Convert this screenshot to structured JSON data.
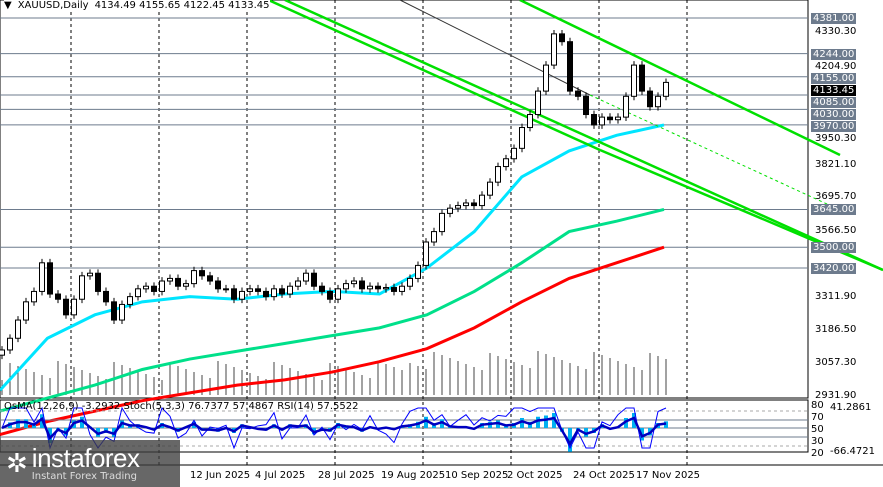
{
  "header": {
    "symbol": "XAUUSD,Daily",
    "ohlc": "4134.49 4155.65 4122.45 4133.45"
  },
  "chart_data": {
    "type": "candlestick",
    "price_axis": {
      "min": 2931.9,
      "max": 4381.0,
      "ticks": [
        "4330.30",
        "4204.90",
        "3950.30",
        "3821.10",
        "3695.70",
        "3566.50",
        "3311.90",
        "3186.50",
        "3057.30",
        "2931.90"
      ]
    },
    "levels": [
      "4381.00",
      "4244.00",
      "4155.00",
      "4085.00",
      "4030.00",
      "3970.00",
      "3645.00",
      "3500.00",
      "3420.00"
    ],
    "current_price": "4133.45",
    "date_labels": [
      "12 Jun 2025",
      "4 Jul 2025",
      "28 Jul 2025",
      "19 Aug 2025",
      "10 Sep 2025",
      "2 Oct 2025",
      "24 Oct 2025",
      "17 Nov 2025"
    ],
    "closes": [
      3105,
      3150,
      3220,
      3290,
      3330,
      3440,
      3320,
      3300,
      3240,
      3300,
      3390,
      3400,
      3330,
      3290,
      3220,
      3280,
      3310,
      3340,
      3350,
      3330,
      3370,
      3380,
      3350,
      3360,
      3410,
      3390,
      3370,
      3340,
      3340,
      3300,
      3330,
      3340,
      3330,
      3310,
      3340,
      3320,
      3350,
      3370,
      3400,
      3350,
      3330,
      3300,
      3340,
      3360,
      3370,
      3340,
      3350,
      3340,
      3345,
      3330,
      3350,
      3380,
      3430,
      3520,
      3560,
      3630,
      3650,
      3660,
      3670,
      3660,
      3700,
      3750,
      3810,
      3840,
      3880,
      3960,
      4010,
      4100,
      4200,
      4320,
      4290,
      4100,
      4080,
      4010,
      3970,
      4000,
      3990,
      4000,
      4080,
      4200,
      4100,
      4040,
      4080,
      4133.45
    ],
    "moving_averages": [
      {
        "color": "#00e5ff",
        "values": [
          2950,
          3150,
          3240,
          3290,
          3310,
          3300,
          3320,
          3330,
          3320,
          3420,
          3560,
          3770,
          3870,
          3930,
          3970
        ]
      },
      {
        "color": "#00e08a",
        "values": [
          2870,
          2920,
          2970,
          3030,
          3070,
          3100,
          3130,
          3160,
          3190,
          3240,
          3330,
          3440,
          3560,
          3600,
          3645
        ]
      },
      {
        "color": "#ff0000",
        "values": [
          2780,
          2830,
          2870,
          2910,
          2940,
          2970,
          2990,
          3020,
          3060,
          3110,
          3190,
          3290,
          3380,
          3440,
          3500
        ]
      }
    ],
    "indicators": {
      "label": "OsMA(12,26,9) -3.2932  Stoch(5,3,3) 76.7377 57.4867  RSI(14) 57.5522",
      "axis": [
        "41.2861",
        "80",
        "70",
        "50",
        "30",
        "20",
        "-66.4721"
      ]
    },
    "trend_line_color": "#00e000"
  },
  "logo": {
    "name": "instaforex",
    "tagline": "Instant Forex Trading"
  }
}
